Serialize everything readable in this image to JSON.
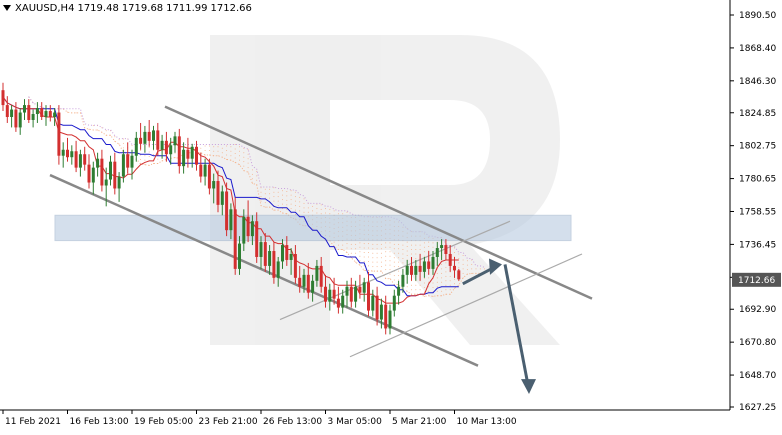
{
  "header": {
    "symbol": "XAUUSD,H4",
    "open": "1719.48",
    "high": "1719.68",
    "low": "1711.99",
    "close": "1712.66"
  },
  "colors": {
    "bull": "#2e7d32",
    "bear": "#d32f2f",
    "kijun": "#1a1acc",
    "tenkan": "#d32f2f",
    "cloud_bull": "#c9a0dc",
    "cloud_bear": "#f4b18a",
    "channel": "#888888",
    "zone": "#b8cbe0",
    "forecast": "#4a5f70",
    "price_box": "#555555"
  },
  "chart_data": {
    "type": "candlestick",
    "ylim": [
      1627.25,
      1901
    ],
    "y_ticks": [
      "1890.50",
      "1868.40",
      "1846.30",
      "1824.85",
      "1802.75",
      "1780.65",
      "1758.55",
      "1736.45",
      "1714.35",
      "1692.90",
      "1670.80",
      "1648.70",
      "1627.25"
    ],
    "x_ticks": [
      "11 Feb 2021",
      "16 Feb 13:00",
      "19 Feb 05:00",
      "23 Feb 21:00",
      "26 Feb 13:00",
      "3 Mar 05:00",
      "5 Mar 21:00",
      "10 Mar 13:00"
    ],
    "x_tick_bars": [
      0,
      15,
      30,
      45,
      60,
      75,
      90,
      105
    ],
    "last_price": "1712.66",
    "candles": [
      [
        1840,
        1845,
        1826,
        1830
      ],
      [
        1830,
        1836,
        1818,
        1822
      ],
      [
        1822,
        1830,
        1815,
        1827
      ],
      [
        1827,
        1832,
        1812,
        1815
      ],
      [
        1815,
        1828,
        1810,
        1825
      ],
      [
        1825,
        1834,
        1820,
        1830
      ],
      [
        1830,
        1834,
        1818,
        1820
      ],
      [
        1820,
        1827,
        1815,
        1824
      ],
      [
        1824,
        1832,
        1818,
        1828
      ],
      [
        1828,
        1832,
        1820,
        1822
      ],
      [
        1822,
        1830,
        1816,
        1826
      ],
      [
        1826,
        1830,
        1819,
        1822
      ],
      [
        1822,
        1828,
        1816,
        1825
      ],
      [
        1825,
        1830,
        1790,
        1796
      ],
      [
        1796,
        1805,
        1788,
        1800
      ],
      [
        1800,
        1808,
        1792,
        1795
      ],
      [
        1795,
        1803,
        1790,
        1799
      ],
      [
        1799,
        1806,
        1785,
        1788
      ],
      [
        1788,
        1800,
        1782,
        1797
      ],
      [
        1797,
        1802,
        1786,
        1790
      ],
      [
        1790,
        1797,
        1774,
        1778
      ],
      [
        1778,
        1792,
        1770,
        1788
      ],
      [
        1788,
        1798,
        1782,
        1794
      ],
      [
        1794,
        1800,
        1772,
        1776
      ],
      [
        1776,
        1788,
        1762,
        1780
      ],
      [
        1780,
        1796,
        1776,
        1792
      ],
      [
        1792,
        1798,
        1770,
        1774
      ],
      [
        1774,
        1785,
        1765,
        1782
      ],
      [
        1782,
        1800,
        1778,
        1797
      ],
      [
        1797,
        1805,
        1784,
        1788
      ],
      [
        1788,
        1800,
        1780,
        1796
      ],
      [
        1796,
        1812,
        1792,
        1808
      ],
      [
        1808,
        1818,
        1800,
        1804
      ],
      [
        1804,
        1816,
        1798,
        1812
      ],
      [
        1812,
        1820,
        1802,
        1806
      ],
      [
        1806,
        1816,
        1800,
        1813
      ],
      [
        1813,
        1818,
        1796,
        1800
      ],
      [
        1800,
        1810,
        1794,
        1806
      ],
      [
        1806,
        1812,
        1792,
        1797
      ],
      [
        1797,
        1808,
        1790,
        1803
      ],
      [
        1803,
        1812,
        1798,
        1809
      ],
      [
        1809,
        1814,
        1784,
        1789
      ],
      [
        1789,
        1805,
        1784,
        1800
      ],
      [
        1800,
        1808,
        1788,
        1794
      ],
      [
        1794,
        1804,
        1788,
        1802
      ],
      [
        1802,
        1806,
        1786,
        1790
      ],
      [
        1790,
        1798,
        1778,
        1782
      ],
      [
        1782,
        1794,
        1776,
        1790
      ],
      [
        1790,
        1794,
        1770,
        1774
      ],
      [
        1774,
        1784,
        1764,
        1779
      ],
      [
        1779,
        1786,
        1758,
        1763
      ],
      [
        1763,
        1776,
        1756,
        1772
      ],
      [
        1772,
        1778,
        1742,
        1746
      ],
      [
        1746,
        1764,
        1740,
        1760
      ],
      [
        1760,
        1768,
        1716,
        1720
      ],
      [
        1720,
        1742,
        1716,
        1737
      ],
      [
        1737,
        1760,
        1732,
        1755
      ],
      [
        1755,
        1766,
        1738,
        1742
      ],
      [
        1742,
        1756,
        1736,
        1752
      ],
      [
        1752,
        1758,
        1724,
        1728
      ],
      [
        1728,
        1742,
        1720,
        1738
      ],
      [
        1738,
        1744,
        1718,
        1722
      ],
      [
        1722,
        1736,
        1716,
        1732
      ],
      [
        1732,
        1738,
        1710,
        1714
      ],
      [
        1714,
        1728,
        1708,
        1725
      ],
      [
        1725,
        1740,
        1720,
        1736
      ],
      [
        1736,
        1742,
        1722,
        1726
      ],
      [
        1726,
        1734,
        1716,
        1730
      ],
      [
        1730,
        1736,
        1710,
        1714
      ],
      [
        1714,
        1722,
        1704,
        1708
      ],
      [
        1708,
        1720,
        1704,
        1716
      ],
      [
        1716,
        1724,
        1700,
        1704
      ],
      [
        1704,
        1716,
        1698,
        1712
      ],
      [
        1712,
        1726,
        1708,
        1722
      ],
      [
        1722,
        1728,
        1704,
        1708
      ],
      [
        1708,
        1716,
        1694,
        1698
      ],
      [
        1698,
        1710,
        1692,
        1706
      ],
      [
        1706,
        1714,
        1696,
        1700
      ],
      [
        1700,
        1708,
        1690,
        1694
      ],
      [
        1694,
        1706,
        1690,
        1702
      ],
      [
        1702,
        1712,
        1694,
        1708
      ],
      [
        1708,
        1714,
        1694,
        1698
      ],
      [
        1698,
        1712,
        1694,
        1708
      ],
      [
        1708,
        1716,
        1700,
        1704
      ],
      [
        1704,
        1714,
        1698,
        1711
      ],
      [
        1711,
        1718,
        1688,
        1692
      ],
      [
        1692,
        1706,
        1688,
        1702
      ],
      [
        1702,
        1708,
        1682,
        1686
      ],
      [
        1686,
        1700,
        1680,
        1696
      ],
      [
        1696,
        1702,
        1676,
        1680
      ],
      [
        1680,
        1696,
        1676,
        1692
      ],
      [
        1692,
        1706,
        1688,
        1702
      ],
      [
        1702,
        1712,
        1696,
        1708
      ],
      [
        1708,
        1720,
        1704,
        1716
      ],
      [
        1716,
        1726,
        1710,
        1722
      ],
      [
        1722,
        1728,
        1712,
        1716
      ],
      [
        1716,
        1726,
        1712,
        1722
      ],
      [
        1722,
        1730,
        1712,
        1718
      ],
      [
        1718,
        1728,
        1714,
        1725
      ],
      [
        1725,
        1732,
        1716,
        1720
      ],
      [
        1720,
        1732,
        1716,
        1728
      ],
      [
        1728,
        1738,
        1722,
        1734
      ],
      [
        1734,
        1740,
        1726,
        1736
      ],
      [
        1736,
        1740,
        1726,
        1730
      ],
      [
        1730,
        1736,
        1718,
        1722
      ],
      [
        1722,
        1728,
        1714,
        1719
      ],
      [
        1719,
        1720,
        1712,
        1713
      ]
    ]
  }
}
